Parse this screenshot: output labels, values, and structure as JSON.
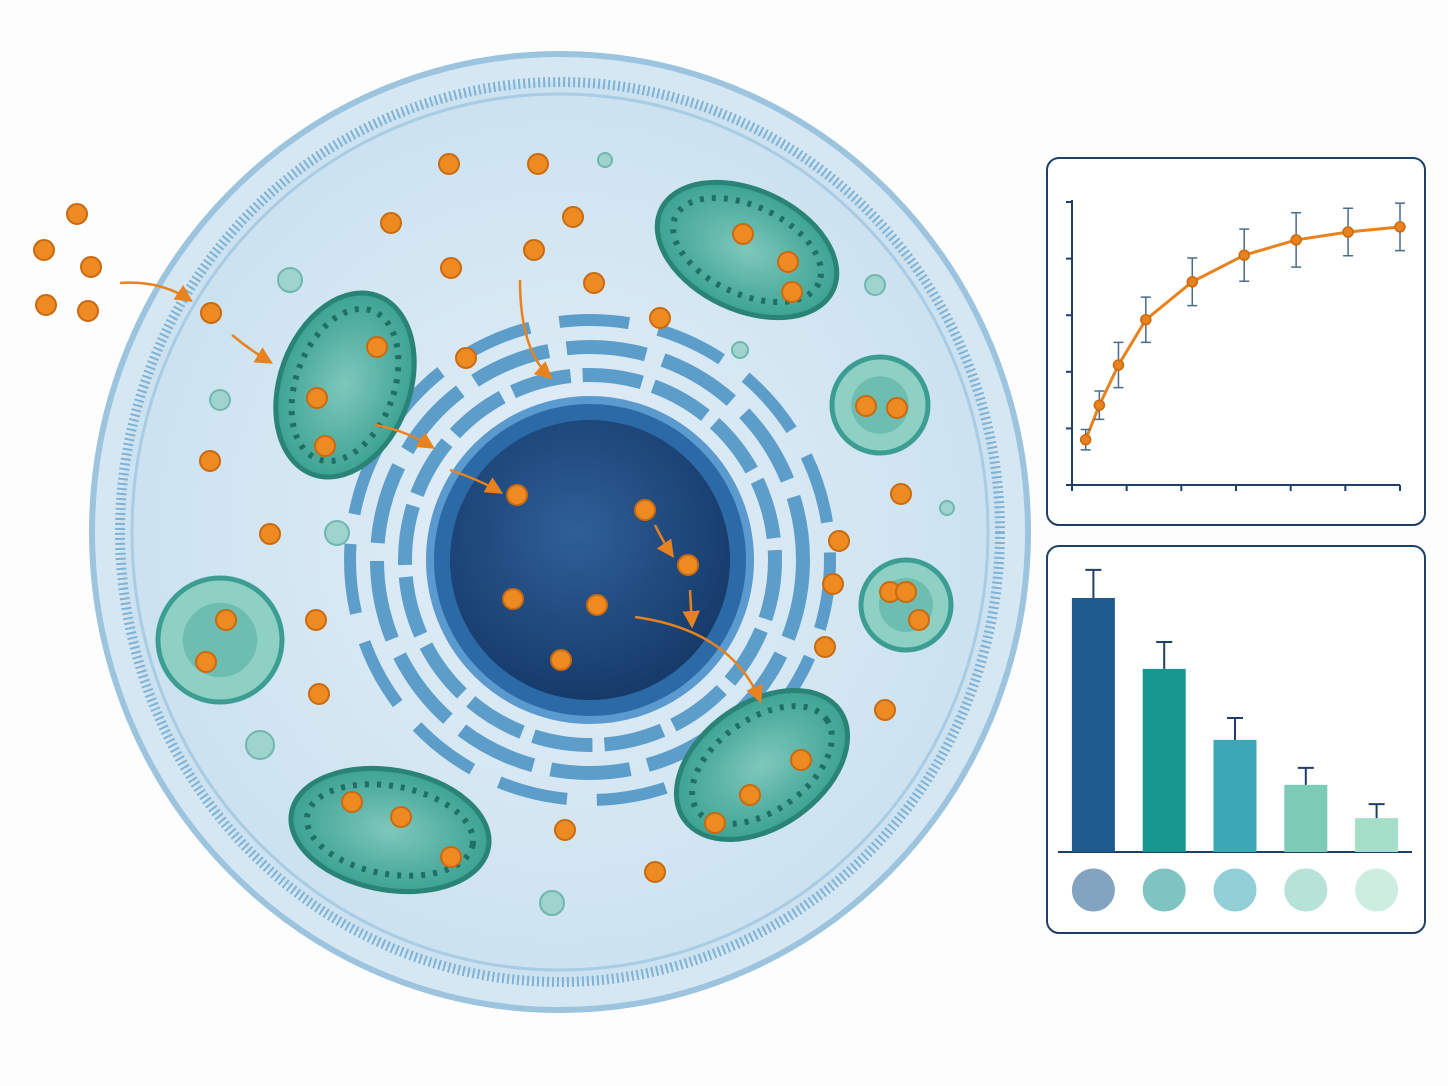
{
  "chart_data": [
    {
      "type": "line",
      "x": [
        0.25,
        0.5,
        0.85,
        1.35,
        2.2,
        3.15,
        4.1,
        5.05,
        6
      ],
      "values": [
        0.8,
        1.41,
        2.12,
        2.92,
        3.59,
        4.06,
        4.33,
        4.47,
        4.56
      ],
      "errors": [
        0.18,
        0.25,
        0.4,
        0.4,
        0.42,
        0.46,
        0.48,
        0.42,
        0.42
      ],
      "color": "#e8821e",
      "xlim": [
        0,
        6
      ],
      "xticks": [
        0,
        1,
        2,
        3,
        4,
        5,
        6
      ],
      "ylim": [
        0,
        5
      ],
      "yticks": [
        0,
        1,
        2,
        3,
        4,
        5
      ]
    },
    {
      "type": "bar",
      "categories": [
        null,
        null,
        null,
        null,
        null
      ],
      "values": [
        87,
        62.7,
        38.4,
        23,
        11.6
      ],
      "errors": [
        9.6,
        9.2,
        7.5,
        5.8,
        4.8
      ],
      "colors": [
        "#1f5a8e",
        "#17958f",
        "#3aa9b5",
        "#7ccbb7",
        "#a6dfc7"
      ],
      "ylim": [
        0,
        100
      ]
    }
  ]
}
